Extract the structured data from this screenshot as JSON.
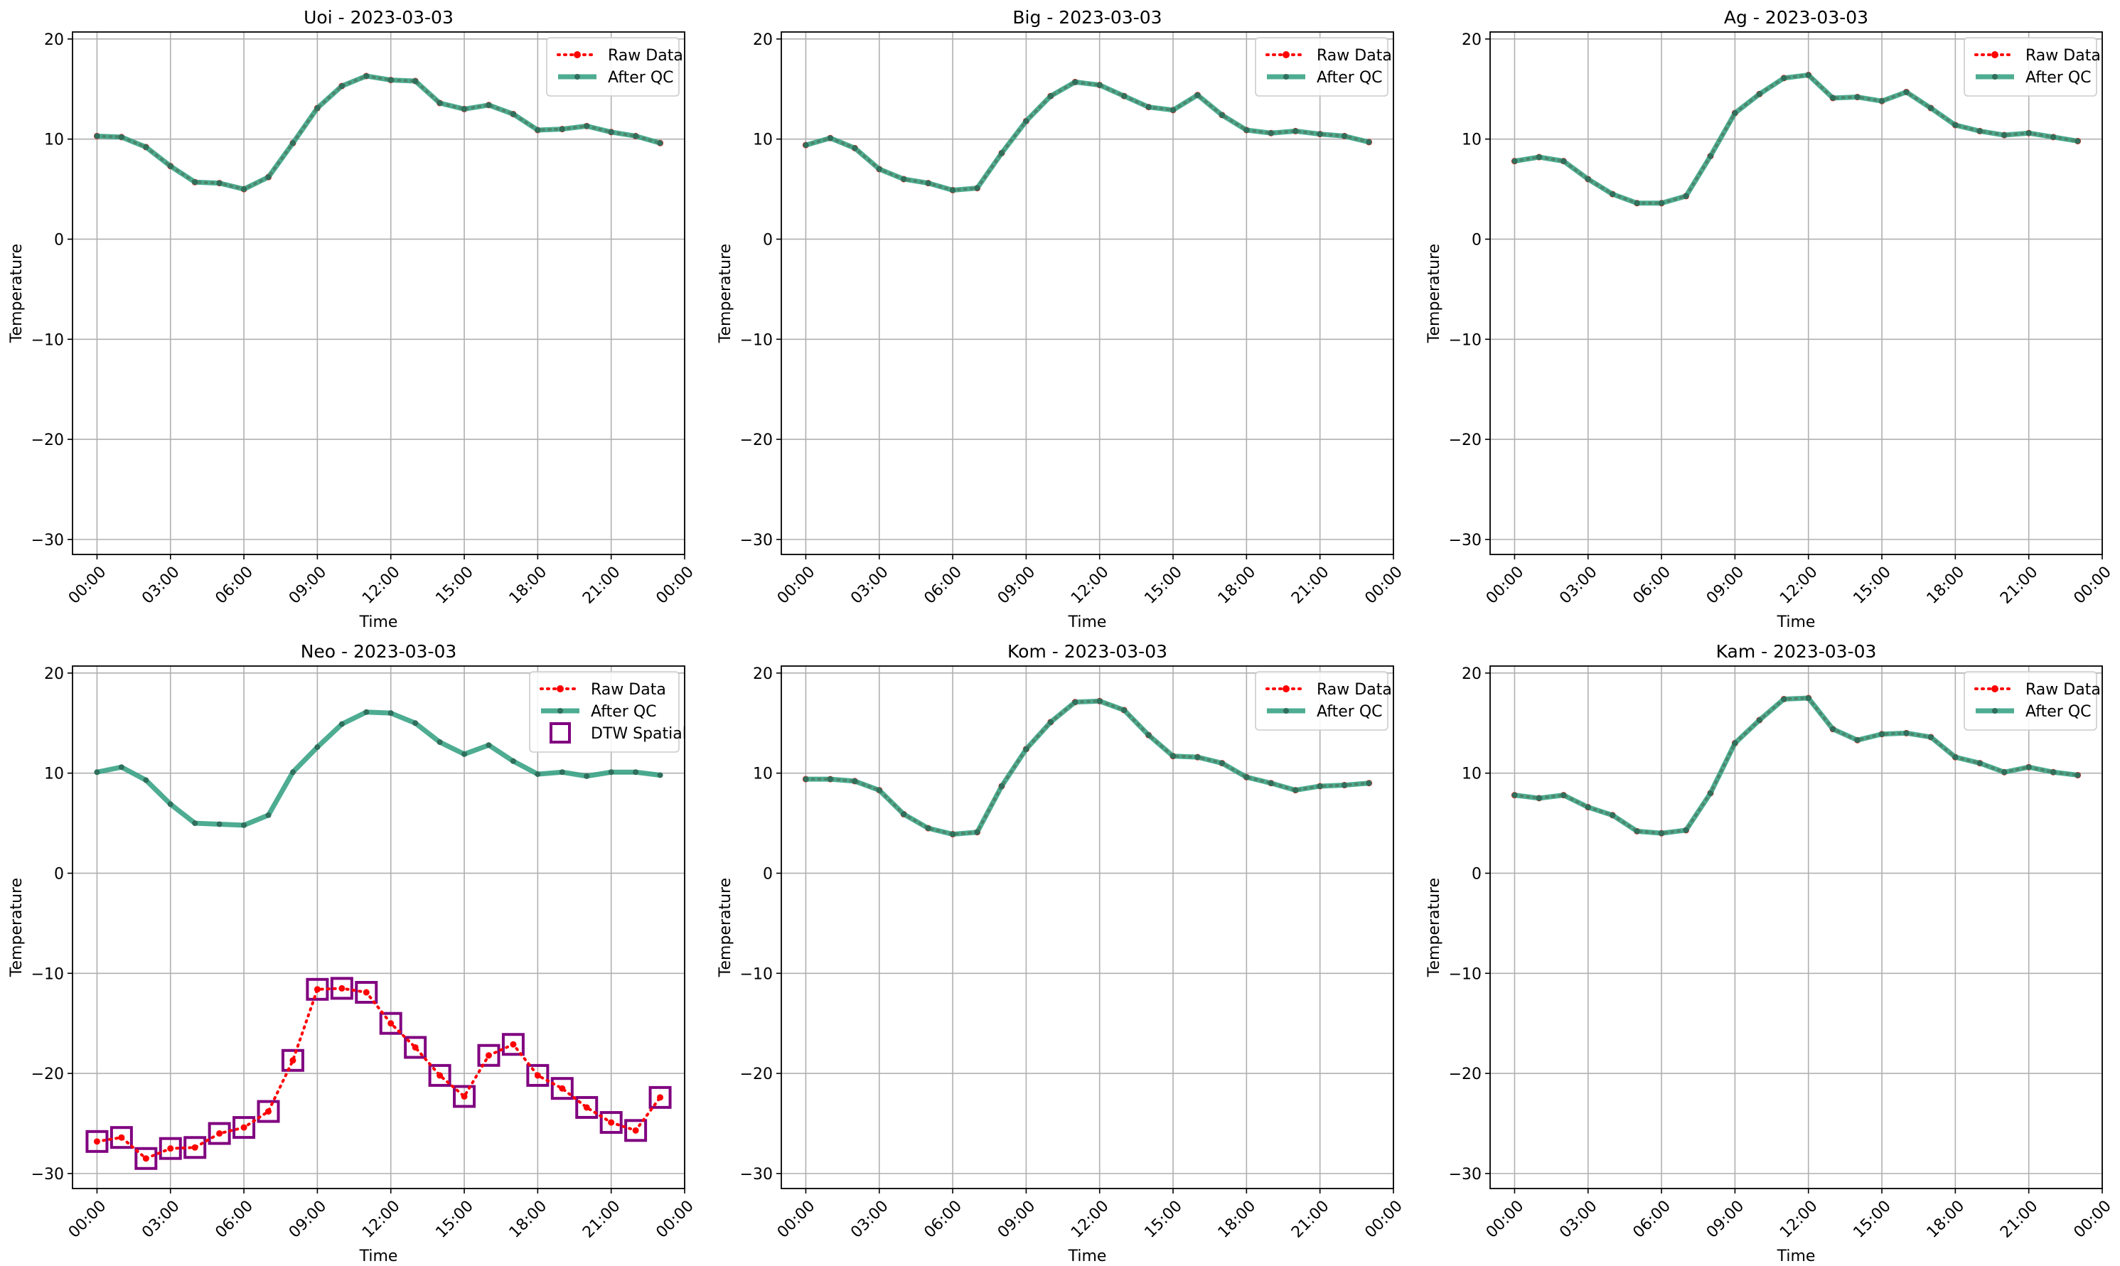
{
  "chart_data": [
    {
      "type": "line",
      "title": "Uoi - 2023-03-03",
      "xlabel": "Time",
      "ylabel": "Temperature",
      "xlim": [
        -1,
        24
      ],
      "ylim": [
        -31.5,
        20.7
      ],
      "yticks": [
        20,
        10,
        0,
        -10,
        -20,
        -30
      ],
      "xticks": [
        0,
        3,
        6,
        9,
        12,
        15,
        18,
        21,
        24
      ],
      "xtick_labels": [
        "00:00",
        "03:00",
        "06:00",
        "09:00",
        "12:00",
        "15:00",
        "18:00",
        "21:00",
        "00:00"
      ],
      "x": [
        0,
        1,
        2,
        3,
        4,
        5,
        6,
        7,
        8,
        9,
        10,
        11,
        12,
        13,
        14,
        15,
        16,
        17,
        18,
        19,
        20,
        21,
        22,
        23
      ],
      "grid": true,
      "legend_position": "upper right",
      "legend": [
        "Raw Data",
        "After QC"
      ],
      "series": [
        {
          "name": "Raw Data",
          "color": "#ff0000",
          "values": [
            10.3,
            10.2,
            9.2,
            7.3,
            5.7,
            5.6,
            5.0,
            6.2,
            9.6,
            13.1,
            15.3,
            16.3,
            15.9,
            15.8,
            13.6,
            13.0,
            13.4,
            12.5,
            10.9,
            11.0,
            11.3,
            10.7,
            10.3,
            9.6
          ]
        },
        {
          "name": "After QC",
          "color": "#2e9e7e",
          "values": [
            10.3,
            10.2,
            9.2,
            7.3,
            5.7,
            5.6,
            5.0,
            6.2,
            9.6,
            13.1,
            15.3,
            16.3,
            15.9,
            15.8,
            13.6,
            13.0,
            13.4,
            12.5,
            10.9,
            11.0,
            11.3,
            10.7,
            10.3,
            9.6
          ]
        }
      ]
    },
    {
      "type": "line",
      "title": "Big - 2023-03-03",
      "xlabel": "Time",
      "ylabel": "Temperature",
      "xlim": [
        -1,
        24
      ],
      "ylim": [
        -31.5,
        20.7
      ],
      "yticks": [
        20,
        10,
        0,
        -10,
        -20,
        -30
      ],
      "xticks": [
        0,
        3,
        6,
        9,
        12,
        15,
        18,
        21,
        24
      ],
      "xtick_labels": [
        "00:00",
        "03:00",
        "06:00",
        "09:00",
        "12:00",
        "15:00",
        "18:00",
        "21:00",
        "00:00"
      ],
      "x": [
        0,
        1,
        2,
        3,
        4,
        5,
        6,
        7,
        8,
        9,
        10,
        11,
        12,
        13,
        14,
        15,
        16,
        17,
        18,
        19,
        20,
        21,
        22,
        23
      ],
      "grid": true,
      "legend_position": "upper right",
      "legend": [
        "Raw Data",
        "After QC"
      ],
      "series": [
        {
          "name": "Raw Data",
          "color": "#ff0000",
          "values": [
            9.4,
            10.1,
            9.1,
            7.0,
            6.0,
            5.6,
            4.9,
            5.1,
            8.6,
            11.8,
            14.3,
            15.7,
            15.4,
            14.3,
            13.2,
            12.9,
            14.4,
            12.4,
            10.9,
            10.6,
            10.8,
            10.5,
            10.3,
            9.7
          ]
        },
        {
          "name": "After QC",
          "color": "#2e9e7e",
          "values": [
            9.4,
            10.1,
            9.1,
            7.0,
            6.0,
            5.6,
            4.9,
            5.1,
            8.6,
            11.8,
            14.3,
            15.7,
            15.4,
            14.3,
            13.2,
            12.9,
            14.4,
            12.4,
            10.9,
            10.6,
            10.8,
            10.5,
            10.3,
            9.7
          ]
        }
      ]
    },
    {
      "type": "line",
      "title": "Ag - 2023-03-03",
      "xlabel": "Time",
      "ylabel": "Temperature",
      "xlim": [
        -1,
        24
      ],
      "ylim": [
        -31.5,
        20.7
      ],
      "yticks": [
        20,
        10,
        0,
        -10,
        -20,
        -30
      ],
      "xticks": [
        0,
        3,
        6,
        9,
        12,
        15,
        18,
        21,
        24
      ],
      "xtick_labels": [
        "00:00",
        "03:00",
        "06:00",
        "09:00",
        "12:00",
        "15:00",
        "18:00",
        "21:00",
        "00:00"
      ],
      "x": [
        0,
        1,
        2,
        3,
        4,
        5,
        6,
        7,
        8,
        9,
        10,
        11,
        12,
        13,
        14,
        15,
        16,
        17,
        18,
        19,
        20,
        21,
        22,
        23
      ],
      "grid": true,
      "legend_position": "upper right",
      "legend": [
        "Raw Data",
        "After QC"
      ],
      "series": [
        {
          "name": "Raw Data",
          "color": "#ff0000",
          "values": [
            7.8,
            8.2,
            7.8,
            6.0,
            4.5,
            3.6,
            3.6,
            4.3,
            8.3,
            12.6,
            14.5,
            16.1,
            16.4,
            14.1,
            14.2,
            13.8,
            14.7,
            13.1,
            11.4,
            10.8,
            10.4,
            10.6,
            10.2,
            9.8
          ]
        },
        {
          "name": "After QC",
          "color": "#2e9e7e",
          "values": [
            7.8,
            8.2,
            7.8,
            6.0,
            4.5,
            3.6,
            3.6,
            4.3,
            8.3,
            12.6,
            14.5,
            16.1,
            16.4,
            14.1,
            14.2,
            13.8,
            14.7,
            13.1,
            11.4,
            10.8,
            10.4,
            10.6,
            10.2,
            9.8
          ]
        }
      ]
    },
    {
      "type": "line",
      "title": "Neo - 2023-03-03",
      "xlabel": "Time",
      "ylabel": "Temperature",
      "xlim": [
        -1,
        24
      ],
      "ylim": [
        -31.5,
        20.7
      ],
      "yticks": [
        20,
        10,
        0,
        -10,
        -20,
        -30
      ],
      "xticks": [
        0,
        3,
        6,
        9,
        12,
        15,
        18,
        21,
        24
      ],
      "xtick_labels": [
        "00:00",
        "03:00",
        "06:00",
        "09:00",
        "12:00",
        "15:00",
        "18:00",
        "21:00",
        "00:00"
      ],
      "x": [
        0,
        1,
        2,
        3,
        4,
        5,
        6,
        7,
        8,
        9,
        10,
        11,
        12,
        13,
        14,
        15,
        16,
        17,
        18,
        19,
        20,
        21,
        22,
        23
      ],
      "grid": true,
      "legend_position": "upper right",
      "legend": [
        "Raw Data",
        "After QC",
        "DTW Spatial"
      ],
      "series": [
        {
          "name": "Raw Data",
          "color": "#ff0000",
          "values": [
            -26.8,
            -26.4,
            -28.5,
            -27.5,
            -27.4,
            -26.0,
            -25.4,
            -23.8,
            -18.7,
            -11.6,
            -11.5,
            -11.9,
            -15.0,
            -17.4,
            -20.2,
            -22.3,
            -18.2,
            -17.1,
            -20.2,
            -21.5,
            -23.4,
            -24.9,
            -25.7,
            -22.4
          ]
        },
        {
          "name": "After QC",
          "color": "#2e9e7e",
          "values": [
            10.1,
            10.6,
            9.3,
            6.9,
            5.0,
            4.9,
            4.8,
            5.8,
            10.1,
            12.6,
            14.9,
            16.1,
            16.0,
            15.0,
            13.1,
            11.9,
            12.8,
            11.2,
            9.9,
            10.1,
            9.7,
            10.1,
            10.1,
            9.8
          ]
        },
        {
          "name": "DTW Spatial",
          "color": "#800080",
          "marker": "square",
          "x": [
            0,
            1,
            2,
            3,
            4,
            5,
            6,
            7,
            8,
            9,
            10,
            11,
            12,
            13,
            14,
            15,
            16,
            17,
            18,
            19,
            20,
            21,
            22,
            23
          ],
          "values": [
            -26.8,
            -26.4,
            -28.5,
            -27.5,
            -27.4,
            -26.0,
            -25.4,
            -23.8,
            -18.7,
            -11.6,
            -11.5,
            -11.9,
            -15.0,
            -17.4,
            -20.2,
            -22.3,
            -18.2,
            -17.1,
            -20.2,
            -21.5,
            -23.4,
            -24.9,
            -25.7,
            -22.4
          ]
        }
      ]
    },
    {
      "type": "line",
      "title": "Kom - 2023-03-03",
      "xlabel": "Time",
      "ylabel": "Temperature",
      "xlim": [
        -1,
        24
      ],
      "ylim": [
        -31.5,
        20.7
      ],
      "yticks": [
        20,
        10,
        0,
        -10,
        -20,
        -30
      ],
      "xticks": [
        0,
        3,
        6,
        9,
        12,
        15,
        18,
        21,
        24
      ],
      "xtick_labels": [
        "00:00",
        "03:00",
        "06:00",
        "09:00",
        "12:00",
        "15:00",
        "18:00",
        "21:00",
        "00:00"
      ],
      "x": [
        0,
        1,
        2,
        3,
        4,
        5,
        6,
        7,
        8,
        9,
        10,
        11,
        12,
        13,
        14,
        15,
        16,
        17,
        18,
        19,
        20,
        21,
        22,
        23
      ],
      "grid": true,
      "legend_position": "upper right",
      "legend": [
        "Raw Data",
        "After QC"
      ],
      "series": [
        {
          "name": "Raw Data",
          "color": "#ff0000",
          "values": [
            9.4,
            9.4,
            9.2,
            8.3,
            5.9,
            4.5,
            3.9,
            4.1,
            8.7,
            12.4,
            15.1,
            17.1,
            17.2,
            16.3,
            13.8,
            11.7,
            11.6,
            11.0,
            9.6,
            9.0,
            8.3,
            8.7,
            8.8,
            9.0
          ]
        },
        {
          "name": "After QC",
          "color": "#2e9e7e",
          "values": [
            9.4,
            9.4,
            9.2,
            8.3,
            5.9,
            4.5,
            3.9,
            4.1,
            8.7,
            12.4,
            15.1,
            17.1,
            17.2,
            16.3,
            13.8,
            11.7,
            11.6,
            11.0,
            9.6,
            9.0,
            8.3,
            8.7,
            8.8,
            9.0
          ]
        }
      ]
    },
    {
      "type": "line",
      "title": "Kam - 2023-03-03",
      "xlabel": "Time",
      "ylabel": "Temperature",
      "xlim": [
        -1,
        24
      ],
      "ylim": [
        -31.5,
        20.7
      ],
      "yticks": [
        20,
        10,
        0,
        -10,
        -20,
        -30
      ],
      "xticks": [
        0,
        3,
        6,
        9,
        12,
        15,
        18,
        21,
        24
      ],
      "xtick_labels": [
        "00:00",
        "03:00",
        "06:00",
        "09:00",
        "12:00",
        "15:00",
        "18:00",
        "21:00",
        "00:00"
      ],
      "x": [
        0,
        1,
        2,
        3,
        4,
        5,
        6,
        7,
        8,
        9,
        10,
        11,
        12,
        13,
        14,
        15,
        16,
        17,
        18,
        19,
        20,
        21,
        22,
        23
      ],
      "grid": true,
      "legend_position": "upper right",
      "legend": [
        "Raw Data",
        "After QC"
      ],
      "series": [
        {
          "name": "Raw Data",
          "color": "#ff0000",
          "values": [
            7.8,
            7.5,
            7.8,
            6.6,
            5.8,
            4.2,
            4.0,
            4.3,
            8.0,
            13.0,
            15.3,
            17.4,
            17.5,
            14.4,
            13.3,
            13.9,
            14.0,
            13.6,
            11.6,
            11.0,
            10.1,
            10.6,
            10.1,
            9.8
          ]
        },
        {
          "name": "After QC",
          "color": "#2e9e7e",
          "values": [
            7.8,
            7.5,
            7.8,
            6.6,
            5.8,
            4.2,
            4.0,
            4.3,
            8.0,
            13.0,
            15.3,
            17.4,
            17.5,
            14.4,
            13.3,
            13.9,
            14.0,
            13.6,
            11.6,
            11.0,
            10.1,
            10.6,
            10.1,
            9.8
          ]
        }
      ]
    }
  ]
}
